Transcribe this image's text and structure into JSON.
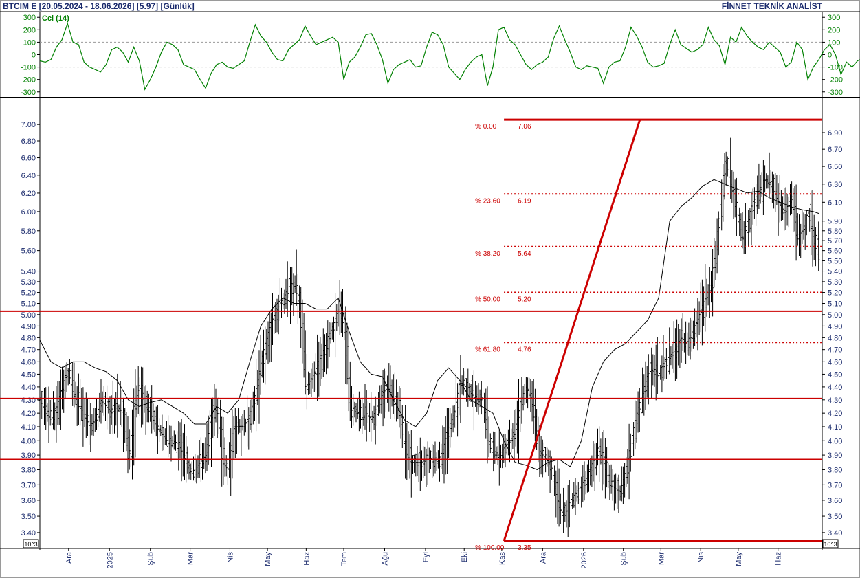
{
  "header": {
    "symbol_text": "BTCIM E  [20.05.2024 - 18.06.2026]  [5.97]  [Günlük]",
    "vendor_text": "FİNNET TEKNİK ANALİST"
  },
  "colors": {
    "cci_line": "#008000",
    "price_bars": "#000000",
    "moving_average": "#000000",
    "levels": "#cc0000",
    "fib_labels": "#cc0000",
    "axis_text": "#1a2a6c",
    "grid": "#999999"
  },
  "chart_data": [
    {
      "type": "line",
      "panel": "indicator",
      "series": [
        {
          "name": "Cci (14)",
          "t": [
            0,
            5,
            10,
            15,
            20,
            25,
            30,
            35,
            40,
            45,
            50,
            55,
            60,
            65,
            70,
            75,
            80,
            85,
            90,
            95,
            100,
            105,
            110,
            115,
            120,
            125,
            130,
            135,
            140,
            145,
            150,
            155,
            160,
            165,
            170,
            175,
            180,
            185,
            190,
            195,
            200,
            205,
            210,
            215,
            220,
            225,
            230,
            235,
            240,
            245,
            250,
            255,
            260,
            265,
            270,
            275,
            280,
            285,
            290,
            295,
            300,
            305,
            310,
            315,
            320,
            325,
            330,
            335,
            340,
            345,
            350,
            355,
            360,
            365,
            370,
            375,
            380,
            385,
            390,
            395,
            400,
            405,
            410,
            415,
            420,
            425,
            430,
            435,
            440,
            445,
            450,
            455,
            460,
            465,
            470,
            475,
            480,
            485,
            490,
            495,
            500,
            505,
            510,
            515,
            520,
            525,
            530,
            535,
            540,
            545,
            550,
            555,
            560,
            565,
            570,
            575,
            580,
            585,
            590,
            595,
            600,
            605,
            610,
            615,
            620,
            625,
            630,
            635,
            640,
            645,
            650,
            655,
            660,
            665,
            670,
            675,
            680,
            685,
            690,
            695,
            700,
            705,
            710,
            715,
            720,
            725,
            730,
            735,
            740,
            745
          ],
          "values": [
            -50,
            -60,
            -40,
            60,
            120,
            250,
            100,
            80,
            -60,
            -100,
            -120,
            -140,
            -80,
            40,
            60,
            20,
            -60,
            60,
            -50,
            -280,
            -200,
            -100,
            20,
            100,
            80,
            40,
            -80,
            -100,
            -120,
            -200,
            -270,
            -150,
            -80,
            -60,
            -100,
            -110,
            -80,
            -50,
            100,
            240,
            150,
            100,
            20,
            -40,
            -50,
            40,
            80,
            120,
            230,
            150,
            80,
            100,
            120,
            140,
            100,
            -200,
            -60,
            -20,
            60,
            160,
            170,
            80,
            -40,
            -230,
            -120,
            -80,
            -60,
            -40,
            -100,
            -90,
            60,
            180,
            160,
            80,
            -100,
            -150,
            -200,
            -120,
            -60,
            -20,
            0,
            -250,
            -100,
            200,
            220,
            120,
            80,
            0,
            -80,
            -120,
            -80,
            -60,
            -20,
            130,
            230,
            120,
            20,
            -100,
            -120,
            -90,
            -100,
            -110,
            -230,
            -100,
            -60,
            -50,
            60,
            220,
            150,
            60,
            -60,
            -100,
            -90,
            -70,
            80,
            200,
            80,
            50,
            20,
            40,
            80,
            220,
            120,
            70,
            -80,
            140,
            100,
            220,
            150,
            100,
            60,
            40,
            100,
            60,
            20,
            -100,
            -60,
            100,
            40,
            -200,
            -100,
            -40,
            40,
            80,
            0,
            -160,
            -60,
            -100,
            -50,
            -30
          ],
          "color": "#008000"
        }
      ],
      "yticks": [
        300,
        200,
        100,
        0,
        -100,
        -200,
        -300
      ],
      "ylim": [
        -340,
        340
      ],
      "reference_lines": [
        100,
        -100
      ],
      "legend_text": "Cci (14)"
    },
    {
      "type": "ohlc",
      "panel": "price",
      "x_tick_labels": [
        "Ara",
        "2025",
        "Şub",
        "Mar",
        "Nis",
        "May",
        "Haz",
        "Tem",
        "Ağu",
        "Eyl",
        "Eki",
        "Kas",
        "Ara",
        "2026",
        "Şub",
        "Mar",
        "Nis",
        "May",
        "Haz"
      ],
      "x_tick_positions": [
        26,
        63,
        100,
        136,
        172,
        206,
        241,
        275,
        312,
        349,
        384,
        418,
        455,
        492,
        528,
        562,
        598,
        632,
        668
      ],
      "x_range": [
        0,
        708
      ],
      "y_scale": "log",
      "ylim": [
        3.33,
        7.2
      ],
      "yticks_left": [
        7.0,
        6.8,
        6.6,
        6.4,
        6.2,
        6.0,
        5.8,
        5.6,
        5.4,
        5.3,
        5.2,
        5.1,
        5.0,
        4.9,
        4.8,
        4.7,
        4.6,
        4.5,
        4.4,
        4.3,
        4.2,
        4.1,
        4.0,
        3.9,
        3.8,
        3.7,
        3.6,
        3.5,
        3.4
      ],
      "yticks_right": [
        6.9,
        6.7,
        6.5,
        6.3,
        6.1,
        5.9,
        5.8,
        5.7,
        5.6,
        5.5,
        5.4,
        5.3,
        5.2,
        5.1,
        5.0,
        4.9,
        4.8,
        4.7,
        4.6,
        4.5,
        4.4,
        4.3,
        4.2,
        4.1,
        4.0,
        3.9,
        3.8,
        3.7,
        3.6,
        3.5,
        3.4
      ],
      "close_path": {
        "t": [
          0,
          5,
          10,
          15,
          20,
          25,
          30,
          35,
          40,
          45,
          50,
          55,
          60,
          65,
          70,
          75,
          80,
          85,
          90,
          95,
          100,
          105,
          110,
          115,
          120,
          125,
          130,
          135,
          140,
          145,
          150,
          155,
          160,
          165,
          170,
          175,
          180,
          185,
          190,
          195,
          200,
          205,
          210,
          215,
          220,
          225,
          230,
          235,
          240,
          245,
          250,
          255,
          260,
          265,
          270,
          275,
          280,
          285,
          290,
          295,
          300,
          305,
          310,
          315,
          320,
          325,
          330,
          335,
          340,
          345,
          350,
          355,
          360,
          365,
          370,
          375,
          380,
          385,
          390,
          395,
          400,
          405,
          410,
          415,
          420,
          425,
          430,
          435,
          440,
          445,
          450,
          455,
          460,
          465,
          470,
          475,
          480,
          485,
          490,
          495,
          500,
          505,
          510,
          515,
          520,
          525,
          530,
          535,
          540,
          545,
          550,
          555,
          560,
          565,
          570,
          575,
          580,
          585,
          590,
          595,
          600,
          605,
          610,
          615,
          620,
          625,
          630,
          635,
          640,
          645,
          650,
          655,
          660,
          665,
          670,
          675,
          680,
          685,
          690,
          695,
          700,
          705
        ],
        "values": [
          4.3,
          4.2,
          4.15,
          4.25,
          4.4,
          4.55,
          4.35,
          4.25,
          4.2,
          4.1,
          4.15,
          4.3,
          4.25,
          4.2,
          4.25,
          4.2,
          3.85,
          4.25,
          4.4,
          4.25,
          4.2,
          4.1,
          4.05,
          4.0,
          4.0,
          3.98,
          3.9,
          3.78,
          3.8,
          3.85,
          3.9,
          4.2,
          4.25,
          3.85,
          3.8,
          4.1,
          4.1,
          4.1,
          4.2,
          4.35,
          4.6,
          4.8,
          4.95,
          5.05,
          5.15,
          5.25,
          5.3,
          5.05,
          4.4,
          4.45,
          4.55,
          4.65,
          4.8,
          4.9,
          5.05,
          4.9,
          4.2,
          4.25,
          4.15,
          4.2,
          4.15,
          4.25,
          4.35,
          4.4,
          4.3,
          4.2,
          3.95,
          3.85,
          3.85,
          3.85,
          3.87,
          3.88,
          3.85,
          3.95,
          4.1,
          4.2,
          4.45,
          4.4,
          4.35,
          4.3,
          4.3,
          4.0,
          3.9,
          3.9,
          3.95,
          4.0,
          4.05,
          4.3,
          4.4,
          4.3,
          3.95,
          3.9,
          3.85,
          3.7,
          3.55,
          3.5,
          3.6,
          3.65,
          3.7,
          3.75,
          3.85,
          3.95,
          3.85,
          3.7,
          3.68,
          3.65,
          3.8,
          4.0,
          4.2,
          4.35,
          4.5,
          4.55,
          4.5,
          4.6,
          4.65,
          4.7,
          4.8,
          4.75,
          4.85,
          4.95,
          5.1,
          5.2,
          5.5,
          6.0,
          6.6,
          6.3,
          6.0,
          5.7,
          5.9,
          6.1,
          6.2,
          6.35,
          6.3,
          6.2,
          6.05,
          6.0,
          6.2,
          5.7,
          5.8,
          6.0,
          5.7,
          5.5
        ],
        "color": "#000000"
      },
      "moving_average": {
        "t": [
          0,
          10,
          20,
          30,
          40,
          50,
          60,
          70,
          80,
          90,
          100,
          110,
          120,
          130,
          140,
          150,
          160,
          170,
          180,
          190,
          200,
          210,
          220,
          230,
          240,
          250,
          260,
          270,
          280,
          290,
          300,
          310,
          320,
          330,
          340,
          350,
          360,
          370,
          380,
          390,
          400,
          410,
          420,
          430,
          440,
          450,
          460,
          470,
          480,
          490,
          500,
          510,
          520,
          530,
          540,
          550,
          560,
          570,
          580,
          590,
          600,
          610,
          620,
          630,
          640,
          650,
          660,
          670,
          680,
          690,
          700,
          705
        ],
        "values": [
          4.78,
          4.6,
          4.55,
          4.6,
          4.6,
          4.55,
          4.52,
          4.45,
          4.3,
          4.25,
          4.28,
          4.3,
          4.25,
          4.2,
          4.12,
          4.12,
          4.25,
          4.2,
          4.3,
          4.6,
          4.9,
          5.05,
          5.15,
          5.1,
          5.1,
          5.05,
          5.05,
          5.15,
          4.85,
          4.6,
          4.5,
          4.48,
          4.3,
          4.15,
          4.1,
          4.2,
          4.45,
          4.55,
          4.45,
          4.3,
          4.25,
          4.2,
          4.0,
          3.85,
          3.83,
          3.8,
          3.85,
          3.87,
          3.82,
          4.0,
          4.4,
          4.6,
          4.7,
          4.75,
          4.85,
          4.95,
          5.15,
          5.9,
          6.05,
          6.15,
          6.28,
          6.35,
          6.3,
          6.25,
          6.2,
          6.22,
          6.15,
          6.1,
          6.05,
          6.02,
          6.0,
          5.98
        ],
        "color": "#000000"
      },
      "horizontal_levels": [
        5.03,
        4.31,
        3.87
      ],
      "trend_line": {
        "from": [
          420,
          3.35
        ],
        "to": [
          543,
          7.06
        ]
      },
      "fibonacci": {
        "x_start": 420,
        "x_end": 708,
        "levels": [
          {
            "percent_label": "% 0.00",
            "value_label": "7.06",
            "price": 7.06,
            "style": "solid"
          },
          {
            "percent_label": "% 23.60",
            "value_label": "6.19",
            "price": 6.19,
            "style": "dotted"
          },
          {
            "percent_label": "% 38.20",
            "value_label": "5.64",
            "price": 5.64,
            "style": "dotted"
          },
          {
            "percent_label": "% 50.00",
            "value_label": "5.20",
            "price": 5.2,
            "style": "dotted"
          },
          {
            "percent_label": "% 61.80",
            "value_label": "4.76",
            "price": 4.76,
            "style": "dotted"
          },
          {
            "percent_label": "% 100.00",
            "value_label": "3.35",
            "price": 3.35,
            "style": "solid"
          }
        ]
      },
      "scale_box_left": "10^3",
      "scale_box_right": "10^3"
    }
  ]
}
